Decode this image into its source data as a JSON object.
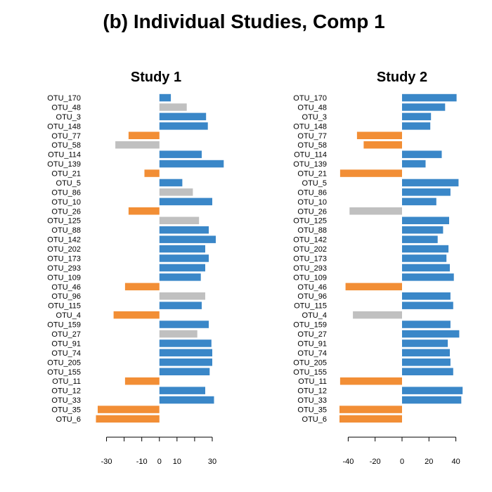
{
  "title": "(b) Individual Studies, Comp 1",
  "colors": {
    "positive": "#3a87c8",
    "negative": "#f28e35",
    "gray": "#c0c0c0"
  },
  "chart_data": [
    {
      "type": "bar",
      "orientation": "horizontal",
      "title": "Study 1",
      "xlim": [
        -37,
        34
      ],
      "xticks": [
        -30,
        -20,
        -10,
        0,
        10,
        20,
        30
      ],
      "xtick_labels": [
        "-30",
        "",
        "-10",
        "0",
        "10",
        "",
        "30"
      ],
      "categories": [
        "OTU_170",
        "OTU_48",
        "OTU_3",
        "OTU_148",
        "OTU_77",
        "OTU_58",
        "OTU_114",
        "OTU_139",
        "OTU_21",
        "OTU_5",
        "OTU_86",
        "OTU_10",
        "OTU_26",
        "OTU_125",
        "OTU_88",
        "OTU_142",
        "OTU_202",
        "OTU_173",
        "OTU_293",
        "OTU_109",
        "OTU_46",
        "OTU_96",
        "OTU_115",
        "OTU_4",
        "OTU_159",
        "OTU_27",
        "OTU_91",
        "OTU_74",
        "OTU_205",
        "OTU_155",
        "OTU_11",
        "OTU_12",
        "OTU_33",
        "OTU_35",
        "OTU_6"
      ],
      "values": [
        6.5,
        15.5,
        26.5,
        27.5,
        -17.5,
        -25,
        24,
        36.5,
        -8.5,
        13,
        19,
        30,
        -17.5,
        22.5,
        28,
        32,
        26,
        28,
        26,
        23.5,
        -19.5,
        26,
        24,
        -26,
        28,
        21.5,
        29.5,
        30,
        30,
        28.5,
        -19.5,
        26,
        31,
        -35,
        -36
      ],
      "bar_colors": [
        "positive",
        "gray",
        "positive",
        "positive",
        "negative",
        "gray",
        "positive",
        "positive",
        "negative",
        "positive",
        "gray",
        "positive",
        "negative",
        "gray",
        "positive",
        "positive",
        "positive",
        "positive",
        "positive",
        "positive",
        "negative",
        "gray",
        "positive",
        "negative",
        "positive",
        "gray",
        "positive",
        "positive",
        "positive",
        "positive",
        "negative",
        "positive",
        "positive",
        "negative",
        "negative"
      ]
    },
    {
      "type": "bar",
      "orientation": "horizontal",
      "title": "Study 2",
      "xlim": [
        -47,
        47
      ],
      "xticks": [
        -40,
        -20,
        0,
        20,
        40
      ],
      "xtick_labels": [
        "-40",
        "-20",
        "0",
        "20",
        "40"
      ],
      "categories": [
        "OTU_170",
        "OTU_48",
        "OTU_3",
        "OTU_148",
        "OTU_77",
        "OTU_58",
        "OTU_114",
        "OTU_139",
        "OTU_21",
        "OTU_5",
        "OTU_86",
        "OTU_10",
        "OTU_26",
        "OTU_125",
        "OTU_88",
        "OTU_142",
        "OTU_202",
        "OTU_173",
        "OTU_293",
        "OTU_109",
        "OTU_46",
        "OTU_96",
        "OTU_115",
        "OTU_4",
        "OTU_159",
        "OTU_27",
        "OTU_91",
        "OTU_74",
        "OTU_205",
        "OTU_155",
        "OTU_11",
        "OTU_12",
        "OTU_33",
        "OTU_35",
        "OTU_6"
      ],
      "values": [
        40.5,
        32,
        21.5,
        21,
        -33.5,
        -28.5,
        29.5,
        17.5,
        -46,
        42,
        36,
        25.5,
        -39,
        35,
        30.5,
        26.5,
        34.5,
        33,
        35.5,
        38.5,
        -42,
        36,
        38,
        -36.5,
        36,
        42.5,
        34,
        35.5,
        36,
        38,
        -46,
        45,
        44,
        -46.5,
        -46.5
      ],
      "bar_colors": [
        "positive",
        "positive",
        "positive",
        "positive",
        "negative",
        "negative",
        "positive",
        "positive",
        "negative",
        "positive",
        "positive",
        "positive",
        "gray",
        "positive",
        "positive",
        "positive",
        "positive",
        "positive",
        "positive",
        "positive",
        "negative",
        "positive",
        "positive",
        "gray",
        "positive",
        "positive",
        "positive",
        "positive",
        "positive",
        "positive",
        "negative",
        "positive",
        "positive",
        "negative",
        "negative"
      ]
    }
  ]
}
